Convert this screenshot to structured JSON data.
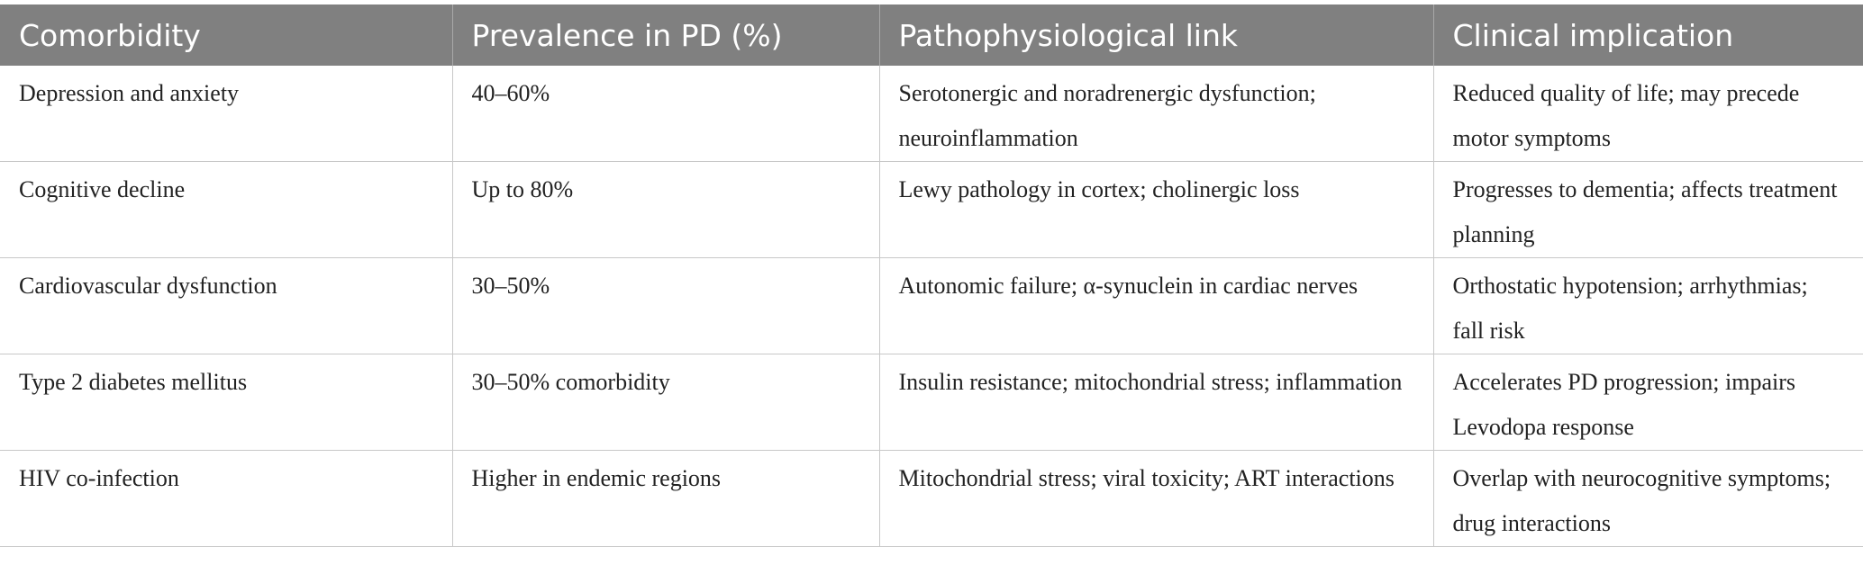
{
  "table": {
    "header": [
      "Comorbidity",
      "Prevalence in PD (%)",
      "Pathophysiological link",
      "Clinical implication"
    ],
    "rows": [
      [
        "Depression and anxiety",
        "40–60%",
        "Serotonergic and noradrenergic dysfunction; neuroinflammation",
        "Reduced quality of life; may precede motor symptoms"
      ],
      [
        "Cognitive decline",
        "Up to 80%",
        "Lewy pathology in cortex; cholinergic loss",
        "Progresses to dementia; affects treatment planning"
      ],
      [
        "Cardiovascular dysfunction",
        "30–50%",
        "Autonomic failure; α-synuclein in cardiac nerves",
        "Orthostatic hypotension; arrhythmias; fall risk"
      ],
      [
        "Type 2 diabetes mellitus",
        "30–50% comorbidity",
        "Insulin resistance; mitochondrial stress; inflammation",
        "Accelerates PD progression; impairs Levodopa response"
      ],
      [
        "HIV co-infection",
        "Higher in endemic regions",
        "Mitochondrial stress; viral toxicity; ART interactions",
        "Overlap with neurocognitive symptoms; drug interactions"
      ]
    ]
  }
}
